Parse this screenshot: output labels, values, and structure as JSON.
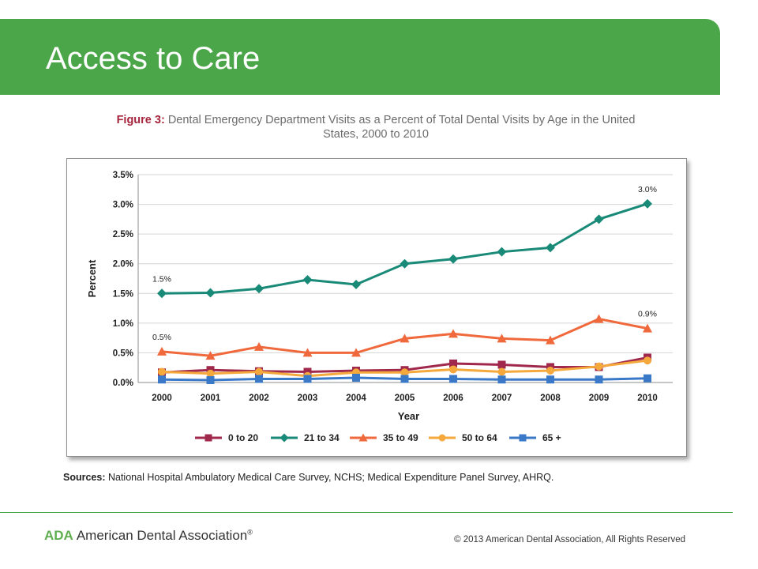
{
  "header": {
    "title": "Access to Care",
    "color": "#4aa648"
  },
  "figure": {
    "label": "Figure 3:",
    "title_line1": "Dental Emergency Department Visits as a Percent of Total Dental Visits by Age in the United",
    "title_line2": "States, 2000 to 2010"
  },
  "sources": {
    "label": "Sources:",
    "text": "National Hospital Ambulatory Medical Care Survey, NCHS; Medical Expenditure Panel Survey, AHRQ."
  },
  "footer": {
    "logo_abbr": "ADA",
    "logo_name": "American Dental Association",
    "logo_mark": "®",
    "copyright": "© 2013 American Dental Association, All Rights Reserved"
  },
  "chart_data": {
    "type": "line",
    "title": "",
    "xlabel": "Year",
    "ylabel": "Percent",
    "x": [
      "2000",
      "2001",
      "2002",
      "2003",
      "2004",
      "2005",
      "2006",
      "2007",
      "2008",
      "2009",
      "2010"
    ],
    "ylim": [
      0,
      3.5
    ],
    "yticks": [
      0,
      0.5,
      1.0,
      1.5,
      2.0,
      2.5,
      3.0,
      3.5
    ],
    "ytick_labels": [
      "0.0%",
      "0.5%",
      "1.0%",
      "1.5%",
      "2.0%",
      "2.5%",
      "3.0%",
      "3.5%"
    ],
    "grid": true,
    "legend_position": "bottom",
    "series": [
      {
        "name": "0 to 20",
        "color": "#a0284c",
        "marker": "square",
        "values": [
          0.17,
          0.21,
          0.19,
          0.18,
          0.2,
          0.21,
          0.32,
          0.3,
          0.26,
          0.26,
          0.42
        ]
      },
      {
        "name": "21 to 34",
        "color": "#1a8a78",
        "marker": "diamond",
        "values": [
          1.5,
          1.51,
          1.58,
          1.73,
          1.65,
          2.0,
          2.08,
          2.2,
          2.27,
          2.75,
          3.01
        ]
      },
      {
        "name": "35 to 49",
        "color": "#f0693c",
        "marker": "triangle",
        "values": [
          0.52,
          0.45,
          0.6,
          0.5,
          0.5,
          0.74,
          0.82,
          0.74,
          0.71,
          1.07,
          0.91
        ]
      },
      {
        "name": "50 to 64",
        "color": "#f5a93c",
        "marker": "circle",
        "values": [
          0.18,
          0.15,
          0.18,
          0.11,
          0.17,
          0.17,
          0.22,
          0.18,
          0.2,
          0.27,
          0.37
        ]
      },
      {
        "name": "65 +",
        "color": "#3a78c8",
        "marker": "square",
        "values": [
          0.05,
          0.04,
          0.06,
          0.06,
          0.08,
          0.06,
          0.06,
          0.05,
          0.05,
          0.05,
          0.07
        ]
      }
    ],
    "annotations": [
      {
        "text": "1.5%",
        "series": "21 to 34",
        "x": "2000"
      },
      {
        "text": "3.0%",
        "series": "21 to 34",
        "x": "2010"
      },
      {
        "text": "0.5%",
        "series": "35 to 49",
        "x": "2000"
      },
      {
        "text": "0.9%",
        "series": "35 to 49",
        "x": "2010"
      }
    ]
  }
}
